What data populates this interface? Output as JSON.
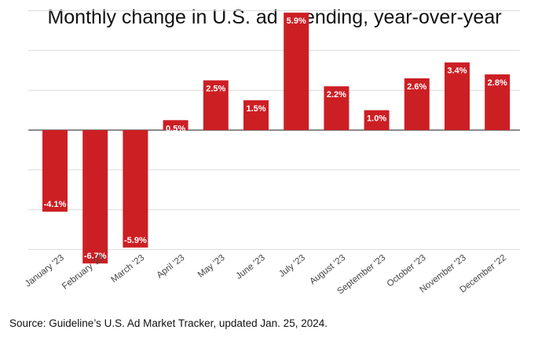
{
  "chart_data": {
    "type": "bar",
    "title": "Monthly change in U.S. ad spending, year-over-year",
    "categories": [
      "January '23",
      "February '23",
      "March '23",
      "April '23",
      "May '23",
      "June '23",
      "July '23",
      "August '23",
      "September '23",
      "October '23",
      "November '23",
      "December '22"
    ],
    "values": [
      -4.1,
      -6.7,
      -5.9,
      0.5,
      2.5,
      1.5,
      5.9,
      2.2,
      1.0,
      2.6,
      3.4,
      2.8
    ],
    "data_labels": [
      "-4.1%",
      "-6.7%",
      "-5.9%",
      "0.5%",
      "2.5%",
      "1.5%",
      "5.9%",
      "2.2%",
      "1.0%",
      "2.6%",
      "3.4%",
      "2.8%"
    ],
    "xlabel": "",
    "ylabel": "",
    "ylim": [
      -6,
      6
    ],
    "gridlines": [
      -6,
      -4,
      -2,
      0,
      2,
      4,
      6
    ],
    "bar_color": "#cc1f24",
    "source": "Source: Guideline’s U.S. Ad Market Tracker, updated Jan. 25, 2024."
  }
}
